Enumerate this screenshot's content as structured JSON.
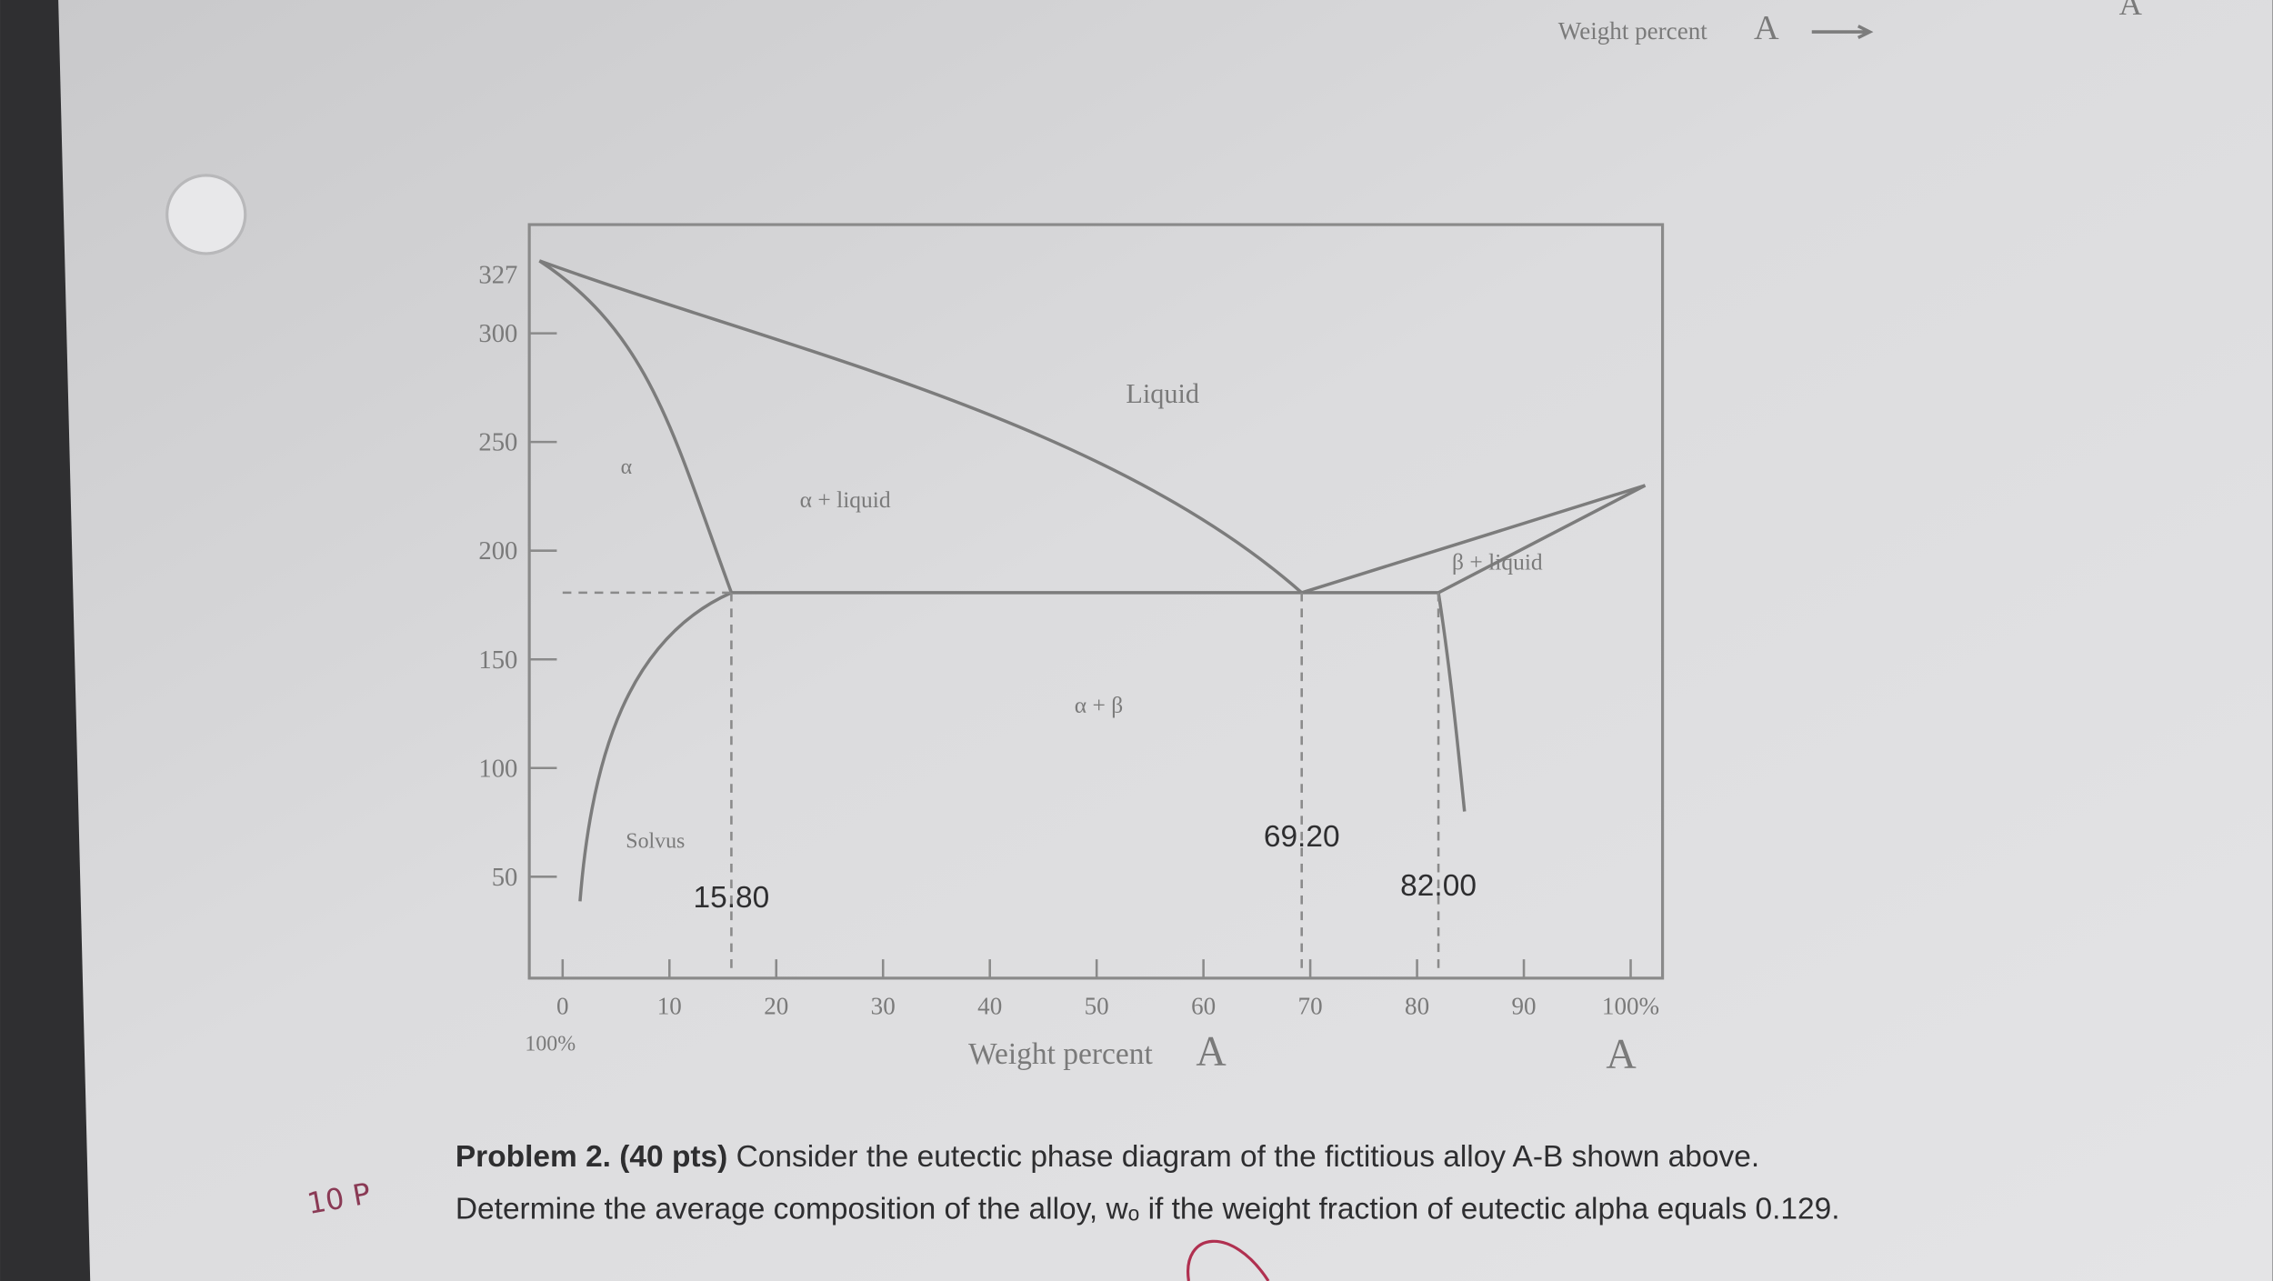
{
  "header": {
    "axis_label": "Weight percent",
    "axis_unit": "A",
    "corner_letter": "A"
  },
  "diagram": {
    "xlim": [
      0,
      100
    ],
    "ylim": [
      0,
      350
    ],
    "yticks": [
      50,
      100,
      150,
      200,
      250,
      300,
      327
    ],
    "xticks": [
      0,
      10,
      20,
      30,
      40,
      50,
      60,
      70,
      80,
      90,
      {
        "value": 100,
        "label": "100%"
      }
    ],
    "x_left_label": "100%",
    "x_label": "Weight percent",
    "x_label_unit": "A",
    "x_right_unit": "A",
    "regions": [
      "Liquid",
      "α",
      "α + liquid",
      "β + liquid",
      "α + β"
    ],
    "solvus": "Solvus",
    "compositions": [
      {
        "value": 15.8,
        "label": "15.80"
      },
      {
        "value": 69.2,
        "label": "69.20"
      },
      {
        "value": 82,
        "label": "82.00"
      }
    ]
  },
  "problem": {
    "heading": "Problem 2. (40 pts)",
    "line1": "Consider the eutectic phase diagram of the fictitious alloy A-B shown above.",
    "line2": "Determine the average composition of the alloy, wₒ if the weight fraction of eutectic alpha equals 0.129."
  },
  "margin_note": "10 P"
}
